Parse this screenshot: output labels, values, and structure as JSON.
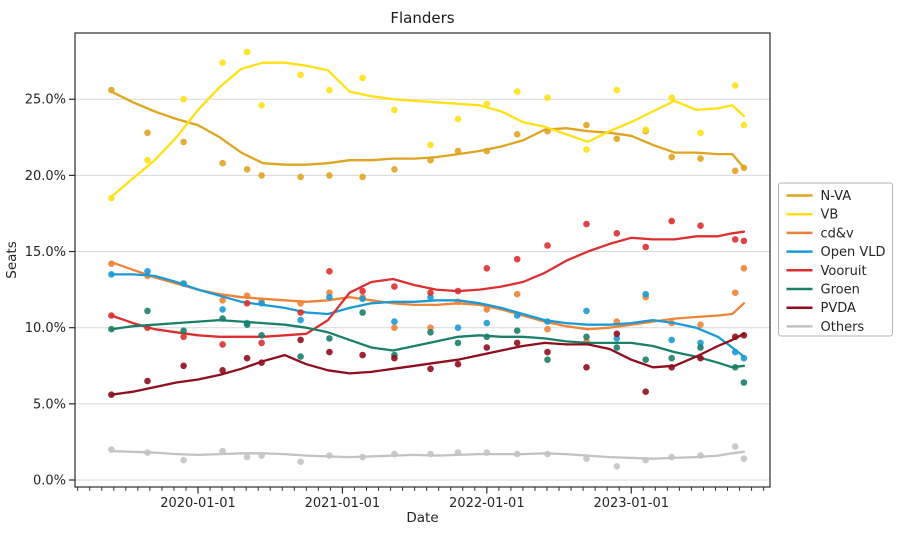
{
  "title": "Flanders",
  "chart_data": {
    "type": "line",
    "title": "Flanders",
    "xlabel": "Date",
    "ylabel": "Seats",
    "grid": "horizontal-light-gray",
    "legend_position": "right-outside",
    "x_ticks": [
      {
        "year": 2020.0,
        "label": "2020-01-01"
      },
      {
        "year": 2021.0,
        "label": "2021-01-01"
      },
      {
        "year": 2022.0,
        "label": "2022-01-01"
      },
      {
        "year": 2023.0,
        "label": "2023-01-01"
      }
    ],
    "minor_x_ticks": "monthly",
    "y_ticks_pct": [
      0,
      5,
      10,
      15,
      20,
      25
    ],
    "y_tick_format": "percent-one-decimal",
    "xlim_years": [
      2019.148,
      2023.961
    ],
    "ylim_pct": [
      -0.46,
      29.35
    ],
    "poll_dates_years": [
      2019.4,
      2019.65,
      2019.9,
      2020.17,
      2020.34,
      2020.44,
      2020.71,
      2020.91,
      2021.14,
      2021.36,
      2021.61,
      2021.8,
      2022.0,
      2022.21,
      2022.42,
      2022.69,
      2022.9,
      2023.1,
      2023.28,
      2023.48,
      2023.72,
      2023.78
    ],
    "trend_dates_years": [
      2019.4,
      2019.55,
      2019.7,
      2019.85,
      2020.0,
      2020.15,
      2020.3,
      2020.45,
      2020.6,
      2020.75,
      2020.9,
      2021.05,
      2021.2,
      2021.35,
      2021.5,
      2021.65,
      2021.8,
      2021.95,
      2022.1,
      2022.25,
      2022.4,
      2022.55,
      2022.7,
      2022.85,
      2023.0,
      2023.15,
      2023.3,
      2023.45,
      2023.6,
      2023.7,
      2023.78
    ],
    "series": [
      {
        "id": "nva",
        "label": "N-VA",
        "color": "#DFA520",
        "trend": [
          25.5,
          24.8,
          24.2,
          23.7,
          23.3,
          22.5,
          21.5,
          20.8,
          20.7,
          20.7,
          20.8,
          21.0,
          21.0,
          21.1,
          21.1,
          21.2,
          21.4,
          21.6,
          21.9,
          22.3,
          23.0,
          23.1,
          22.9,
          22.8,
          22.6,
          22.0,
          21.5,
          21.5,
          21.4,
          21.4,
          20.5
        ],
        "polls": [
          25.6,
          22.8,
          22.2,
          20.8,
          20.4,
          20.0,
          19.9,
          20.0,
          19.9,
          20.4,
          21.0,
          21.6,
          21.6,
          22.7,
          22.9,
          23.3,
          22.4,
          22.9,
          21.2,
          21.1,
          20.3,
          20.5
        ]
      },
      {
        "id": "vb",
        "label": "VB",
        "color": "#FFE115",
        "trend": [
          18.6,
          19.8,
          21.0,
          22.5,
          24.3,
          25.8,
          27.0,
          27.4,
          27.4,
          27.2,
          26.9,
          25.5,
          25.2,
          25.0,
          24.9,
          24.8,
          24.7,
          24.6,
          24.2,
          23.5,
          23.2,
          22.7,
          22.2,
          22.9,
          23.5,
          24.2,
          24.9,
          24.3,
          24.4,
          24.6,
          23.9
        ],
        "polls": [
          18.5,
          21.0,
          25.0,
          27.4,
          28.1,
          24.6,
          26.6,
          25.6,
          26.4,
          24.3,
          22.0,
          23.7,
          24.7,
          25.5,
          25.1,
          21.7,
          25.6,
          23.0,
          25.1,
          22.8,
          25.9,
          23.3
        ]
      },
      {
        "id": "cdv",
        "label": "cd&v",
        "color": "#EF8336",
        "trend": [
          14.3,
          13.8,
          13.3,
          12.9,
          12.5,
          12.2,
          12.0,
          11.9,
          11.8,
          11.7,
          11.8,
          12.0,
          11.8,
          11.6,
          11.5,
          11.5,
          11.6,
          11.5,
          11.2,
          10.8,
          10.4,
          10.1,
          9.9,
          10.0,
          10.2,
          10.4,
          10.6,
          10.7,
          10.8,
          10.9,
          11.6
        ],
        "polls": [
          14.2,
          13.4,
          12.9,
          11.8,
          12.1,
          11.7,
          11.6,
          12.3,
          12.0,
          10.0,
          10.0,
          11.7,
          11.2,
          12.2,
          9.9,
          9.1,
          10.4,
          12.0,
          10.3,
          10.2,
          12.3,
          13.9
        ]
      },
      {
        "id": "openvld",
        "label": "Open VLD",
        "color": "#1B9AD6",
        "trend": [
          13.5,
          13.5,
          13.4,
          13.0,
          12.5,
          12.1,
          11.7,
          11.5,
          11.3,
          11.0,
          10.9,
          11.3,
          11.6,
          11.7,
          11.7,
          11.8,
          11.8,
          11.6,
          11.3,
          10.9,
          10.5,
          10.3,
          10.2,
          10.2,
          10.3,
          10.5,
          10.3,
          10.0,
          9.4,
          8.7,
          8.1
        ],
        "polls": [
          13.5,
          13.7,
          12.9,
          11.2,
          10.3,
          11.6,
          10.5,
          12.0,
          11.9,
          10.4,
          12.0,
          10.0,
          10.3,
          10.8,
          10.4,
          11.1,
          9.3,
          12.2,
          9.2,
          9.0,
          8.4,
          8.0
        ]
      },
      {
        "id": "vooruit",
        "label": "Vooruit",
        "color": "#DC2F2F",
        "trend": [
          10.8,
          10.3,
          9.9,
          9.7,
          9.5,
          9.4,
          9.4,
          9.4,
          9.5,
          9.6,
          10.5,
          12.3,
          13.0,
          13.2,
          12.8,
          12.5,
          12.4,
          12.5,
          12.7,
          13.0,
          13.6,
          14.4,
          15.0,
          15.5,
          15.9,
          15.8,
          15.8,
          16.0,
          16.0,
          16.2,
          16.3
        ],
        "polls": [
          10.8,
          10.0,
          9.4,
          8.9,
          11.6,
          9.0,
          11.0,
          13.7,
          12.4,
          12.7,
          12.3,
          12.4,
          13.9,
          14.5,
          15.4,
          16.8,
          16.2,
          15.3,
          17.0,
          16.7,
          15.8,
          15.7
        ]
      },
      {
        "id": "groen",
        "label": "Groen",
        "color": "#1A8069",
        "trend": [
          9.9,
          10.1,
          10.2,
          10.3,
          10.4,
          10.5,
          10.4,
          10.3,
          10.2,
          10.0,
          9.7,
          9.2,
          8.7,
          8.5,
          8.8,
          9.1,
          9.4,
          9.5,
          9.4,
          9.4,
          9.3,
          9.1,
          9.0,
          9.0,
          9.0,
          8.8,
          8.4,
          8.1,
          7.7,
          7.4,
          7.5
        ],
        "polls": [
          9.9,
          11.1,
          9.8,
          10.6,
          10.2,
          9.5,
          8.1,
          9.3,
          11.0,
          8.2,
          9.7,
          9.0,
          9.4,
          9.8,
          7.9,
          9.4,
          8.7,
          7.9,
          8.0,
          8.7,
          7.4,
          6.4
        ]
      },
      {
        "id": "pvda",
        "label": "PVDA",
        "color": "#8F0E1E",
        "trend": [
          5.6,
          5.8,
          6.1,
          6.4,
          6.6,
          6.9,
          7.3,
          7.8,
          8.2,
          7.6,
          7.2,
          7.0,
          7.1,
          7.3,
          7.5,
          7.7,
          7.9,
          8.2,
          8.5,
          8.8,
          9.0,
          8.9,
          8.9,
          8.6,
          7.9,
          7.4,
          7.5,
          8.1,
          8.8,
          9.2,
          9.6
        ],
        "polls": [
          5.6,
          6.5,
          7.5,
          7.2,
          8.0,
          7.7,
          9.2,
          8.4,
          8.2,
          8.0,
          7.3,
          7.6,
          8.7,
          9.0,
          8.4,
          7.4,
          9.6,
          5.8,
          7.4,
          8.0,
          9.4,
          9.5
        ]
      },
      {
        "id": "others",
        "label": "Others",
        "color": "#C3C3C3",
        "trend": [
          1.9,
          1.85,
          1.8,
          1.7,
          1.65,
          1.7,
          1.75,
          1.75,
          1.7,
          1.6,
          1.55,
          1.5,
          1.55,
          1.6,
          1.65,
          1.6,
          1.65,
          1.7,
          1.7,
          1.7,
          1.75,
          1.7,
          1.6,
          1.5,
          1.45,
          1.4,
          1.45,
          1.5,
          1.6,
          1.75,
          1.85
        ],
        "polls": [
          2.0,
          1.8,
          1.3,
          1.9,
          1.5,
          1.6,
          1.2,
          1.6,
          1.5,
          1.7,
          1.7,
          1.8,
          1.8,
          1.7,
          1.7,
          1.4,
          0.9,
          1.3,
          1.5,
          1.6,
          2.2,
          1.4
        ]
      }
    ]
  }
}
